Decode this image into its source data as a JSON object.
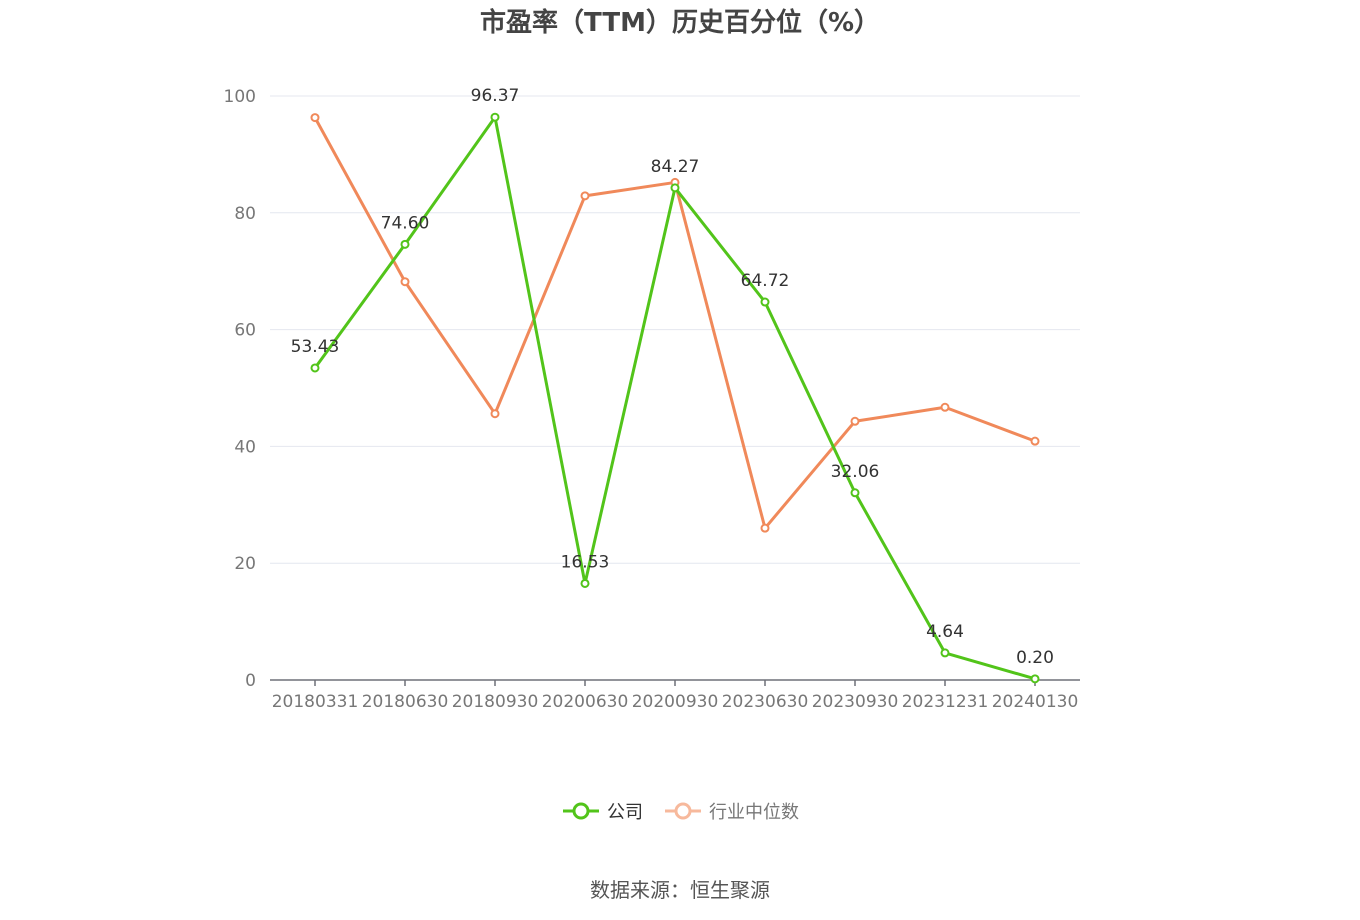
{
  "chart_data": {
    "type": "line",
    "title": "市盈率（TTM）历史百分位（%）",
    "categories": [
      "20180331",
      "20180630",
      "20180930",
      "20200630",
      "20200930",
      "20230630",
      "20230930",
      "20231231",
      "20240130"
    ],
    "ylim": [
      0,
      100
    ],
    "yticks": [
      0,
      20,
      40,
      60,
      80,
      100
    ],
    "grid": true,
    "legend_position": "bottom",
    "series": [
      {
        "name": "公司",
        "color": "#52c41a",
        "values": [
          53.43,
          74.6,
          96.37,
          16.53,
          84.27,
          64.72,
          32.06,
          4.64,
          0.2
        ],
        "labels": [
          "53.43",
          "74.60",
          "96.37",
          "16.53",
          "84.27",
          "64.72",
          "32.06",
          "4.64",
          "0.20"
        ]
      },
      {
        "name": "行业中位数",
        "color": "#f0895a",
        "values": [
          96.3,
          68.2,
          45.6,
          82.9,
          85.2,
          26.0,
          44.3,
          46.7,
          40.9
        ]
      }
    ]
  },
  "source": "数据来源：恒生聚源"
}
